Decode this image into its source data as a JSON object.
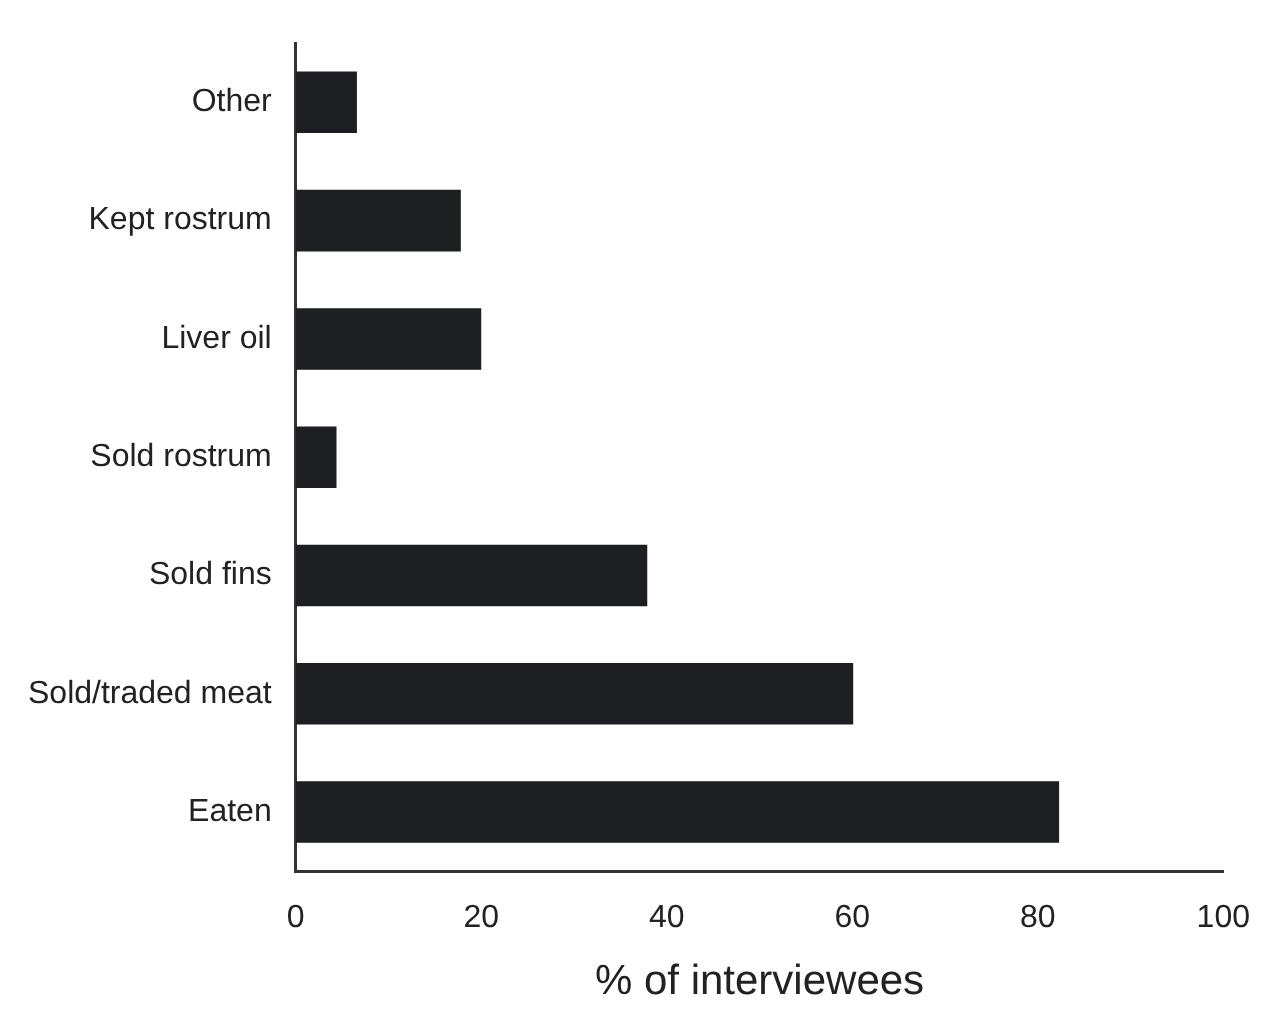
{
  "chart_data": {
    "type": "bar",
    "orientation": "horizontal",
    "xlabel": "% of interviewees",
    "categories": [
      "Other",
      "Kept rostrum",
      "Liver oil",
      "Sold rostrum",
      "Sold fins",
      "Sold/traded meat",
      "Eaten"
    ],
    "values": [
      6.6,
      17.8,
      20,
      4.4,
      37.9,
      60.1,
      82.3
    ],
    "color": "#1d1e21",
    "xlim": [
      0,
      100
    ],
    "xticks": [
      0,
      20,
      40,
      60,
      80,
      100
    ],
    "grid": false,
    "legend": false
  }
}
